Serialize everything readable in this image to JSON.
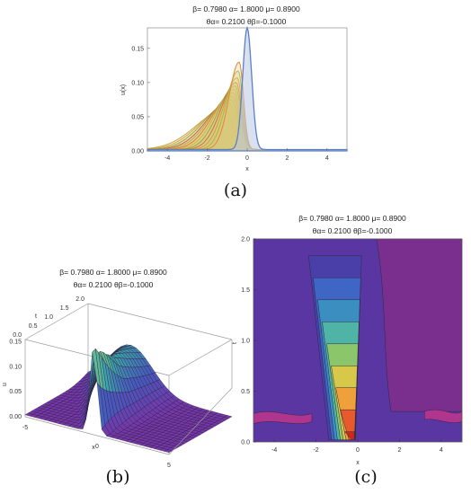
{
  "chart_data": [
    {
      "type": "line",
      "panel": "(a)",
      "title_line1": "β= 0.7980 α= 1.8000 μ= 0.8900",
      "title_line2": "θα= 0.2100 θβ=-0.1000",
      "xlabel": "x",
      "ylabel": "u(x)",
      "xlim": [
        -5,
        5
      ],
      "ylim": [
        0,
        0.18
      ],
      "xticks": [
        "-4",
        "-2",
        "0",
        "2",
        "4"
      ],
      "yticks": [
        "0.00",
        "0.05",
        "0.10",
        "0.15"
      ],
      "grid": false,
      "series_count": 13,
      "peak_x": [
        0.0,
        -0.4,
        -0.45,
        -0.5,
        -0.55,
        -0.6,
        -0.65,
        -0.7,
        -0.75,
        -0.8,
        -0.9,
        -1.0,
        -1.1
      ],
      "peak_y": [
        0.178,
        0.128,
        0.115,
        0.105,
        0.098,
        0.093,
        0.088,
        0.083,
        0.078,
        0.073,
        0.068,
        0.063,
        0.058
      ],
      "colors": [
        "#5b80c4",
        "#e8833a",
        "#a8b542",
        "#c9a13b",
        "#d96a48",
        "#8fa84d",
        "#d4b33f",
        "#e07b3c",
        "#b8ac45",
        "#c85e52",
        "#9aaa48",
        "#dba345",
        "#c3a84a"
      ]
    },
    {
      "type": "surface",
      "panel": "(b)",
      "title_line1": "β= 0.7980 α= 1.8000 μ= 0.8900",
      "title_line2": "θα= 0.2100 θβ=-0.1000",
      "xlabel": "x",
      "ylabel": "t",
      "zlabel": "u",
      "xticks": [
        "-5",
        "0",
        "5"
      ],
      "yticks": [
        "0.0",
        "0.5",
        "1.0",
        "1.5",
        "2.0"
      ],
      "zticks": [
        "0.00",
        "0.05",
        "0.10",
        "0.15"
      ]
    },
    {
      "type": "contour",
      "panel": "(c)",
      "title_line1": "β= 0.7980 α= 1.8000 μ= 0.8900",
      "title_line2": "θα= 0.2100 θβ=-0.1000",
      "xlabel": "x",
      "ylabel": "t",
      "xlim": [
        -5,
        5
      ],
      "ylim": [
        0,
        2
      ],
      "xticks": [
        "-4",
        "-2",
        "0",
        "2",
        "4"
      ],
      "yticks": [
        "0.0",
        "0.5",
        "1.0",
        "1.5",
        "2.0"
      ],
      "level_colors": [
        "#6a2f9a",
        "#4a3fa8",
        "#3f66c4",
        "#3b8fc0",
        "#4fb3a6",
        "#8cc66a",
        "#d7c84a",
        "#f0a03a",
        "#e85a2c",
        "#c8281e"
      ]
    }
  ]
}
